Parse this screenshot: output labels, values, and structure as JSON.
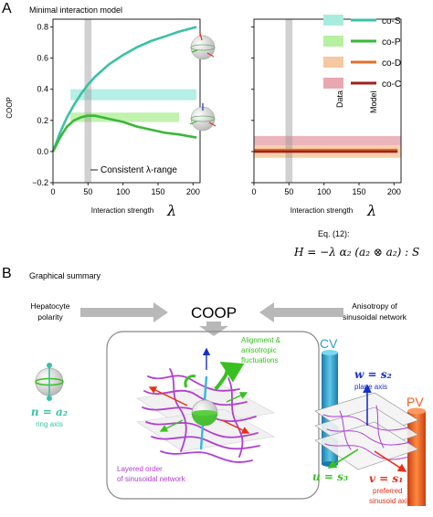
{
  "panel_a": {
    "letter": "A",
    "title": "Minimal interaction model",
    "consistent_range_label": "Consistent λ-range",
    "equation_ref": "Eq. (12):",
    "equation": "H = −λ α₂ (a₂ ⊗ a₂) : S"
  },
  "legend": {
    "data_label": "Data",
    "model_label": "Model",
    "entries": [
      {
        "label": "co-S",
        "data_color": "#a8ece0",
        "model_color": "#3cc0a8"
      },
      {
        "label": "co-P",
        "data_color": "#b6f0a0",
        "model_color": "#38b838"
      },
      {
        "label": "co-D",
        "data_color": "#f4c8a0",
        "model_color": "#e07028"
      },
      {
        "label": "co-C",
        "data_color": "#e8a8b0",
        "model_color": "#a02018"
      }
    ]
  },
  "chart_data": [
    {
      "type": "line",
      "xlabel": "Interaction strength",
      "xlabel_symbol": "λ",
      "ylabel": "COOP",
      "xlim": [
        0,
        210
      ],
      "ylim": [
        -0.2,
        0.85
      ],
      "xticks": [
        "0",
        "50",
        "100",
        "150",
        "200"
      ],
      "yticks": [
        "−0.2",
        "0.0",
        "0.2",
        "0.4",
        "0.6",
        "0.8"
      ],
      "consistent_range": [
        45,
        55
      ],
      "data_bands": [
        {
          "legend": "co-S",
          "range": [
            0.33,
            0.4
          ],
          "x_extent": [
            25,
            205
          ]
        },
        {
          "legend": "co-P",
          "range": [
            0.19,
            0.25
          ],
          "x_extent": [
            25,
            180
          ]
        }
      ],
      "series": [
        {
          "legend": "co-S",
          "x": [
            0,
            10,
            20,
            30,
            40,
            50,
            60,
            80,
            100,
            120,
            140,
            160,
            180,
            205
          ],
          "values": [
            0.0,
            0.12,
            0.22,
            0.3,
            0.37,
            0.43,
            0.48,
            0.56,
            0.62,
            0.67,
            0.71,
            0.74,
            0.77,
            0.8
          ]
        },
        {
          "legend": "co-P",
          "x": [
            0,
            10,
            20,
            30,
            40,
            50,
            60,
            80,
            100,
            120,
            140,
            160,
            180,
            205
          ],
          "values": [
            0.0,
            0.09,
            0.16,
            0.2,
            0.22,
            0.23,
            0.23,
            0.21,
            0.19,
            0.16,
            0.14,
            0.12,
            0.11,
            0.09
          ]
        }
      ]
    },
    {
      "type": "line",
      "xlabel": "Interaction strength",
      "xlabel_symbol": "λ",
      "xlim": [
        0,
        210
      ],
      "ylim": [
        -0.2,
        0.85
      ],
      "xticks": [
        "0",
        "50",
        "100",
        "150",
        "200"
      ],
      "consistent_range": [
        45,
        55
      ],
      "data_bands": [
        {
          "legend": "co-C",
          "range": [
            0.04,
            0.1
          ],
          "x_extent": [
            0,
            210
          ]
        },
        {
          "legend": "co-D",
          "range": [
            -0.04,
            0.04
          ],
          "x_extent": [
            0,
            210
          ]
        }
      ],
      "series": [
        {
          "legend": "co-D",
          "x": [
            0,
            205
          ],
          "values": [
            0.01,
            0.01
          ]
        },
        {
          "legend": "co-C",
          "x": [
            0,
            205
          ],
          "values": [
            0.0,
            0.0
          ]
        }
      ]
    }
  ],
  "panel_b": {
    "letter": "B",
    "title": "Graphical summary",
    "coop_label": "COOP",
    "left_input": "Hepatocyte\npolarity",
    "right_input": "Anisotropy of\nsinusoidal network",
    "alignment_label": "Alignment &\nanisotropic\nfluctuations",
    "layered_label": "Layered order\nof sinusoidal network",
    "n_axis": "n = a₂",
    "ring_axis_label": "ring axis",
    "cv_label": "CV",
    "pv_label": "PV",
    "w_axis": "w = s₂",
    "plane_axis_label": "plane axis",
    "u_axis": "u = s₃",
    "v_axis": "v = s₁",
    "preferred_label": "preferred\nsinusoid axis",
    "colors": {
      "teal": "#3cc0a8",
      "green": "#38c020",
      "purple": "#b040d0",
      "red": "#e83018",
      "blue": "#1830c8",
      "cv_blue": "#30a0c8",
      "pv_orange": "#f06020"
    }
  }
}
